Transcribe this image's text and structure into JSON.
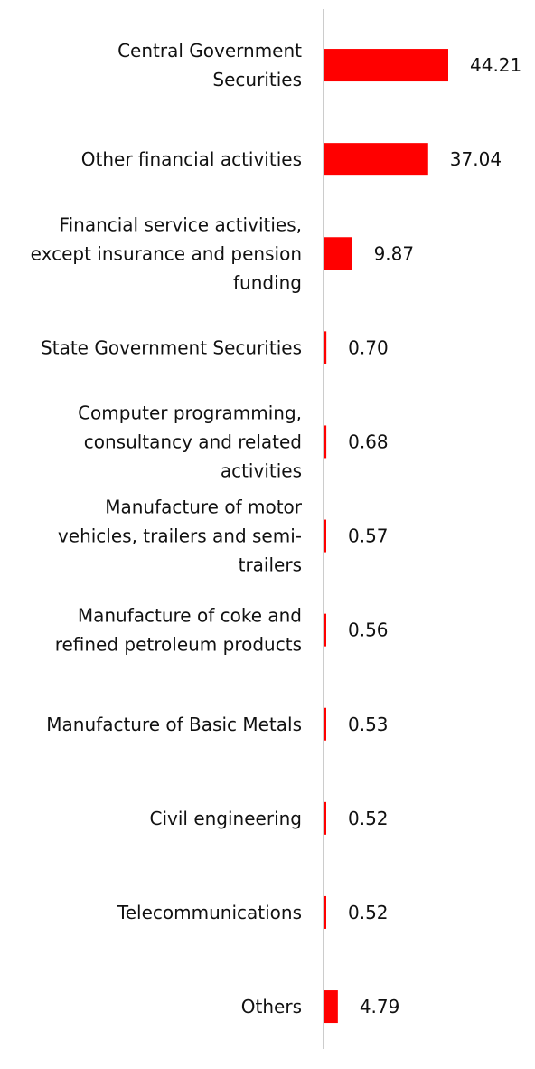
{
  "chart_data": {
    "type": "bar",
    "orientation": "horizontal",
    "title": "",
    "xlabel": "",
    "ylabel": "",
    "categories": [
      "Central Government Securities",
      "Other financial activities",
      "Financial service activities, except insurance and pension funding",
      "State Government Securities",
      "Computer programming, consultancy and related activities",
      "Manufacture of motor vehicles, trailers and semi-trailers",
      "Manufacture of coke and refined petroleum products",
      "Manufacture of Basic Metals",
      "Civil engineering",
      "Telecommunications",
      "Others"
    ],
    "category_lines": [
      [
        "Central Government",
        "Securities"
      ],
      [
        "Other financial activities"
      ],
      [
        "Financial service activities,",
        "except insurance and pension",
        "funding"
      ],
      [
        "State Government Securities"
      ],
      [
        "Computer programming,",
        "consultancy and related",
        "activities"
      ],
      [
        "Manufacture of motor",
        "vehicles, trailers and semi-",
        "trailers"
      ],
      [
        "Manufacture of coke and",
        "refined petroleum products"
      ],
      [
        "Manufacture of Basic Metals"
      ],
      [
        "Civil engineering"
      ],
      [
        "Telecommunications"
      ],
      [
        "Others"
      ]
    ],
    "values": [
      44.21,
      37.04,
      9.87,
      0.7,
      0.68,
      0.57,
      0.56,
      0.53,
      0.52,
      0.52,
      4.79
    ],
    "value_labels": [
      "44.21",
      "37.04",
      "9.87",
      "0.70",
      "0.68",
      "0.57",
      "0.56",
      "0.53",
      "0.52",
      "0.52",
      "4.79"
    ],
    "xlim": [
      0,
      44.21
    ],
    "grid": false,
    "legend": "none",
    "bar_color": "#ff0000",
    "axis_color": "#cccccc"
  }
}
